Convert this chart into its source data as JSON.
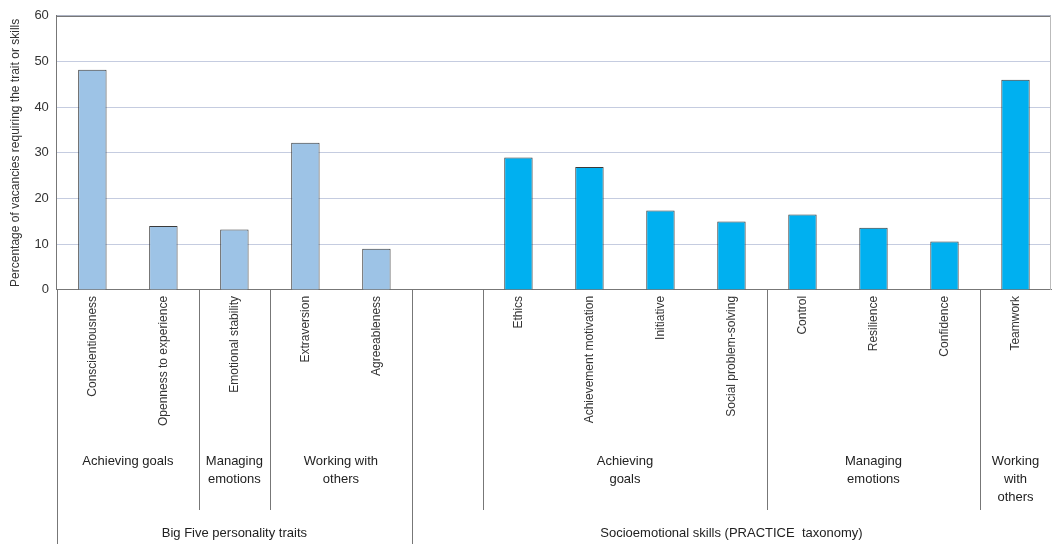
{
  "chart_data": {
    "type": "bar",
    "ylabel": "Percentage of vacancies requiring the trait or skills",
    "categories": [
      "Conscientiousness",
      "Openness to experience",
      "Emotional stability",
      "Extraversion",
      "Agreeableness",
      null,
      "Ethics",
      "Achievement motivation",
      "Initiative",
      "Social problem-solving",
      "Control",
      "Resilience",
      "Confidence",
      "Teamwork"
    ],
    "values": [
      48.2,
      14.0,
      13.2,
      32.2,
      9.0,
      null,
      29.0,
      26.9,
      17.4,
      15.0,
      16.5,
      13.6,
      10.6,
      46.0
    ],
    "colors": [
      "#9dc3e6",
      "#9dc3e6",
      "#9dc3e6",
      "#9dc3e6",
      "#9dc3e6",
      "#9dc3e6",
      "#00b0f0",
      "#00b0f0",
      "#00b0f0",
      "#00b0f0",
      "#00b0f0",
      "#00b0f0",
      "#00b0f0",
      "#00b0f0"
    ],
    "ylim": [
      0,
      60
    ],
    "yticks": [
      0,
      10,
      20,
      30,
      40,
      50,
      60
    ],
    "grid": "y",
    "annotations": [
      "Achieving goals",
      "Managing emotions",
      "Working with others",
      "Achieving goals",
      "Managing emotions",
      "Working with others",
      "Big Five personality traits",
      "Socioemotional skills (PRACTICE  taxonomy)"
    ]
  }
}
